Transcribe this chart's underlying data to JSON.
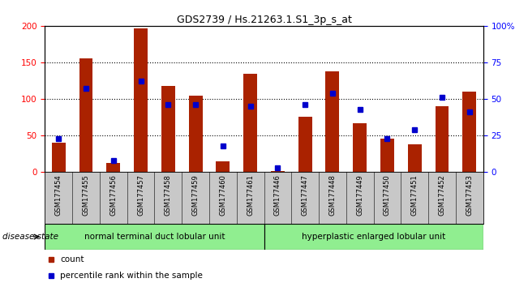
{
  "title": "GDS2739 / Hs.21263.1.S1_3p_s_at",
  "samples": [
    "GSM177454",
    "GSM177455",
    "GSM177456",
    "GSM177457",
    "GSM177458",
    "GSM177459",
    "GSM177460",
    "GSM177461",
    "GSM177446",
    "GSM177447",
    "GSM177448",
    "GSM177449",
    "GSM177450",
    "GSM177451",
    "GSM177452",
    "GSM177453"
  ],
  "counts": [
    40,
    155,
    13,
    197,
    118,
    105,
    15,
    135,
    2,
    76,
    138,
    67,
    46,
    38,
    90,
    110
  ],
  "percentiles": [
    23,
    57,
    8,
    62,
    46,
    46,
    18,
    45,
    3,
    46,
    54,
    43,
    23,
    29,
    51,
    41
  ],
  "groups": [
    {
      "label": "normal terminal duct lobular unit",
      "start": 0,
      "end": 8,
      "color": "#90EE90"
    },
    {
      "label": "hyperplastic enlarged lobular unit",
      "start": 8,
      "end": 16,
      "color": "#90EE90"
    }
  ],
  "bar_color": "#AA2200",
  "dot_color": "#0000CC",
  "left_ylim": [
    0,
    200
  ],
  "right_ylim": [
    0,
    100
  ],
  "left_yticks": [
    0,
    50,
    100,
    150,
    200
  ],
  "right_yticks": [
    0,
    25,
    50,
    75,
    100
  ],
  "right_yticklabels": [
    "0",
    "25",
    "50",
    "75",
    "100%"
  ],
  "background_color": "#ffffff",
  "plot_bg": "#ffffff",
  "disease_state_label": "disease state"
}
